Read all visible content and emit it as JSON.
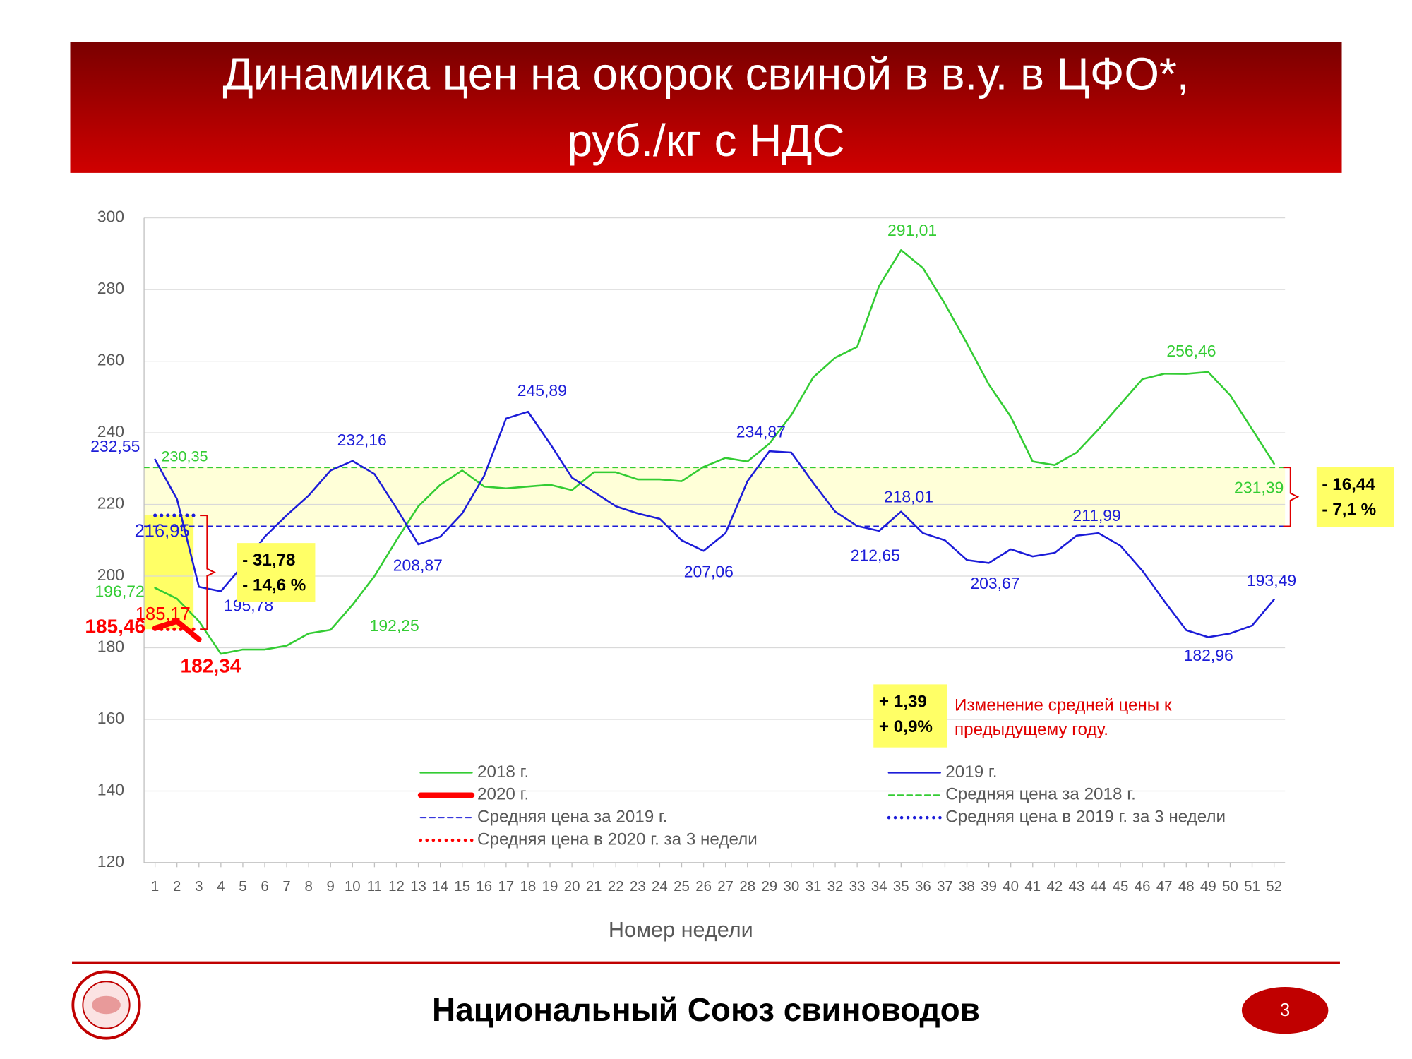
{
  "chart_data": {
    "type": "line",
    "title": [
      "Динамика цен на окорок свиной в в.у. в ЦФО*,",
      "руб./кг с НДС"
    ],
    "x_label": "Номер недели",
    "x": [
      1,
      2,
      3,
      4,
      5,
      6,
      7,
      8,
      9,
      10,
      11,
      12,
      13,
      14,
      15,
      16,
      17,
      18,
      19,
      20,
      21,
      22,
      23,
      24,
      25,
      26,
      27,
      28,
      29,
      30,
      31,
      32,
      33,
      34,
      35,
      36,
      37,
      38,
      39,
      40,
      41,
      42,
      43,
      44,
      45,
      46,
      47,
      48,
      49,
      50,
      51,
      52
    ],
    "xlim": [
      0.5,
      52.5
    ],
    "xticks": [
      1,
      2,
      3,
      4,
      5,
      6,
      7,
      8,
      9,
      10,
      11,
      12,
      13,
      14,
      15,
      16,
      17,
      18,
      19,
      20,
      21,
      22,
      23,
      24,
      25,
      26,
      27,
      28,
      29,
      30,
      31,
      32,
      33,
      34,
      35,
      36,
      37,
      38,
      39,
      40,
      41,
      42,
      43,
      44,
      45,
      46,
      47,
      48,
      49,
      50,
      51,
      52
    ],
    "ylim": [
      120,
      300
    ],
    "yticks": [
      120,
      140,
      160,
      180,
      200,
      220,
      240,
      260,
      280,
      300
    ],
    "grid": true,
    "series": [
      {
        "name": "2018 г.",
        "color": "#33cc33",
        "width": 2,
        "values": [
          196.72,
          193.7,
          187.4,
          178.3,
          179.5,
          179.5,
          180.6,
          184,
          185,
          192,
          200,
          210,
          219.5,
          225.5,
          229.5,
          225,
          224.5,
          225,
          225.5,
          224,
          229,
          229,
          227,
          227,
          226.5,
          230.5,
          233,
          232,
          237,
          245,
          255.5,
          261,
          264,
          281,
          291.01,
          286,
          276,
          265,
          253.5,
          244.5,
          232,
          231,
          234.5,
          241,
          248,
          255,
          256.5,
          256.46,
          257,
          250.5,
          241,
          231.39
        ],
        "value_labels": [
          "196,72",
          null,
          null,
          null,
          null,
          null,
          null,
          null,
          null,
          null,
          null,
          null,
          null,
          null,
          null,
          null,
          null,
          null,
          null,
          null,
          null,
          null,
          null,
          null,
          null,
          null,
          null,
          null,
          null,
          null,
          null,
          null,
          null,
          null,
          "291,01",
          null,
          null,
          null,
          null,
          null,
          null,
          null,
          null,
          null,
          null,
          null,
          null,
          "256,46",
          null,
          null,
          null,
          "231,39"
        ]
      },
      {
        "name": "2019 г.",
        "color": "#1c1cd8",
        "width": 2,
        "values": [
          232.55,
          221.5,
          197,
          195.78,
          203,
          211,
          217,
          222.5,
          229.5,
          232.16,
          228.5,
          219,
          208.87,
          211,
          217.5,
          228,
          244,
          245.89,
          237,
          227.5,
          223.5,
          219.5,
          217.5,
          216,
          210,
          207.06,
          212,
          226.5,
          234.87,
          234.5,
          226,
          218,
          214,
          212.65,
          218.01,
          212,
          210,
          204.5,
          203.67,
          207.5,
          205.5,
          206.5,
          211.3,
          211.99,
          208.5,
          201.5,
          193,
          184.9,
          182.96,
          184,
          186.2,
          193.49
        ],
        "value_labels": [
          "232,55",
          null,
          null,
          "195,78",
          null,
          null,
          null,
          null,
          null,
          "232,16",
          null,
          null,
          "208,87",
          null,
          null,
          null,
          null,
          "245,89",
          null,
          null,
          null,
          null,
          null,
          null,
          null,
          "207,06",
          null,
          null,
          "234,87",
          null,
          null,
          null,
          null,
          "212,65",
          "218,01",
          null,
          null,
          null,
          "203,67",
          null,
          null,
          null,
          null,
          "211,99",
          null,
          null,
          null,
          null,
          "182,96",
          null,
          null,
          "193,49"
        ]
      },
      {
        "name": "2020 г.",
        "color": "#ff0000",
        "width": 6,
        "values": [
          185.46,
          187.4,
          182.34,
          null,
          null,
          null,
          null,
          null,
          null,
          null,
          null,
          null,
          null,
          null,
          null,
          null,
          null,
          null,
          null,
          null,
          null,
          null,
          null,
          null,
          null,
          null,
          null,
          null,
          null,
          null,
          null,
          null,
          null,
          null,
          null,
          null,
          null,
          null,
          null,
          null,
          null,
          null,
          null,
          null,
          null,
          null,
          null,
          null,
          null,
          null,
          null,
          null
        ],
        "value_labels": [
          "185,46",
          null,
          "182,34",
          null,
          null,
          null,
          null,
          null,
          null,
          null,
          null,
          null,
          null,
          null,
          null,
          null,
          null,
          null,
          null,
          null,
          null,
          null,
          null,
          null,
          null,
          null,
          null,
          null,
          null,
          null,
          null,
          null,
          null,
          null,
          null,
          null,
          null,
          null,
          null,
          null,
          null,
          null,
          null,
          null,
          null,
          null,
          null,
          null,
          null,
          null,
          null,
          null
        ]
      }
    ],
    "reference_lines": [
      {
        "name": "Средняя цена за 2018 г.",
        "color": "#33cc33",
        "style": "dash",
        "value": 230.35,
        "value_label": "230,35"
      },
      {
        "name": "Средняя цена за 2019 г.",
        "color": "#1c1cd8",
        "style": "dash",
        "value": 213.91
      },
      {
        "name": "Средняя цена в 2019 г. за 3 недели",
        "color": "#1c1cd8",
        "style": "dot",
        "value": 216.95,
        "value_label": "216,95",
        "x": [
          1,
          3
        ]
      },
      {
        "name": "Средняя цена в 2020 г. за 3 недели",
        "color": "#ff0000",
        "style": "dot",
        "value": 185.17,
        "value_label": "185,17",
        "x": [
          1,
          3
        ]
      }
    ],
    "annotations": [
      {
        "lines": [
          "- 16,44",
          "- 7,1 %"
        ]
      },
      {
        "lines": [
          "- 31,78",
          "- 14,6 %"
        ]
      },
      {
        "lines": [
          "+ 1,39",
          "+ 0,9%"
        ],
        "note": [
          "Изменение средней цены к",
          "предыдущему году."
        ]
      },
      {
        "text": "192,25"
      }
    ]
  },
  "footer": {
    "organization": "Национальный Союз свиноводов",
    "page": "3"
  }
}
